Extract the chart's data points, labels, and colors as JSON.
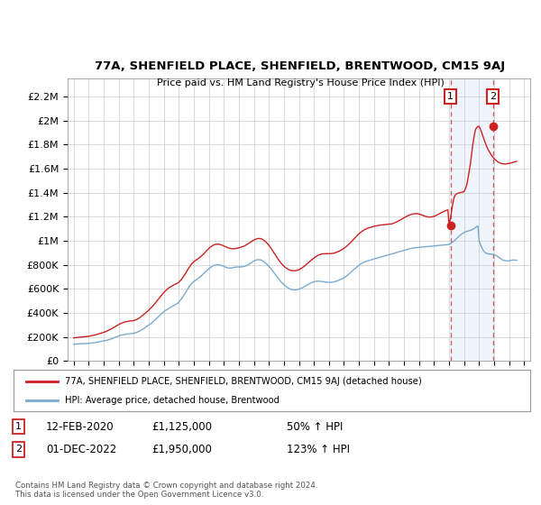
{
  "title": "77A, SHENFIELD PLACE, SHENFIELD, BRENTWOOD, CM15 9AJ",
  "subtitle": "Price paid vs. HM Land Registry's House Price Index (HPI)",
  "ylabel_ticks": [
    "£0",
    "£200K",
    "£400K",
    "£600K",
    "£800K",
    "£1M",
    "£1.2M",
    "£1.4M",
    "£1.6M",
    "£1.8M",
    "£2M",
    "£2.2M"
  ],
  "ytick_values": [
    0,
    200000,
    400000,
    600000,
    800000,
    1000000,
    1200000,
    1400000,
    1600000,
    1800000,
    2000000,
    2200000
  ],
  "ylim": [
    0,
    2350000
  ],
  "xlim_start": 1994.6,
  "xlim_end": 2025.4,
  "hpi_color": "#7aaad0",
  "property_color": "#cc2222",
  "bg_color": "#ffffff",
  "grid_color": "#cccccc",
  "annotation_box_color": "#cc2222",
  "shade_color": "#ddeeff",
  "sale1_year": 2020.1,
  "sale1_value": 1125000,
  "sale2_year": 2022.92,
  "sale2_value": 1950000,
  "sale1_date": "12-FEB-2020",
  "sale1_price": "£1,125,000",
  "sale1_hpi": "50% ↑ HPI",
  "sale2_date": "01-DEC-2022",
  "sale2_price": "£1,950,000",
  "sale2_hpi": "123% ↑ HPI",
  "legend_property": "77A, SHENFIELD PLACE, SHENFIELD, BRENTWOOD, CM15 9AJ (detached house)",
  "legend_hpi": "HPI: Average price, detached house, Brentwood",
  "footer": "Contains HM Land Registry data © Crown copyright and database right 2024.\nThis data is licensed under the Open Government Licence v3.0.",
  "hpi_years": [
    1995.0,
    1995.08,
    1995.17,
    1995.25,
    1995.33,
    1995.42,
    1995.5,
    1995.58,
    1995.67,
    1995.75,
    1995.83,
    1995.92,
    1996.0,
    1996.08,
    1996.17,
    1996.25,
    1996.33,
    1996.42,
    1996.5,
    1996.58,
    1996.67,
    1996.75,
    1996.83,
    1996.92,
    1997.0,
    1997.08,
    1997.17,
    1997.25,
    1997.33,
    1997.42,
    1997.5,
    1997.58,
    1997.67,
    1997.75,
    1997.83,
    1997.92,
    1998.0,
    1998.08,
    1998.17,
    1998.25,
    1998.33,
    1998.42,
    1998.5,
    1998.58,
    1998.67,
    1998.75,
    1998.83,
    1998.92,
    1999.0,
    1999.08,
    1999.17,
    1999.25,
    1999.33,
    1999.42,
    1999.5,
    1999.58,
    1999.67,
    1999.75,
    1999.83,
    1999.92,
    2000.0,
    2000.08,
    2000.17,
    2000.25,
    2000.33,
    2000.42,
    2000.5,
    2000.58,
    2000.67,
    2000.75,
    2000.83,
    2000.92,
    2001.0,
    2001.08,
    2001.17,
    2001.25,
    2001.33,
    2001.42,
    2001.5,
    2001.58,
    2001.67,
    2001.75,
    2001.83,
    2001.92,
    2002.0,
    2002.08,
    2002.17,
    2002.25,
    2002.33,
    2002.42,
    2002.5,
    2002.58,
    2002.67,
    2002.75,
    2002.83,
    2002.92,
    2003.0,
    2003.08,
    2003.17,
    2003.25,
    2003.33,
    2003.42,
    2003.5,
    2003.58,
    2003.67,
    2003.75,
    2003.83,
    2003.92,
    2004.0,
    2004.08,
    2004.17,
    2004.25,
    2004.33,
    2004.42,
    2004.5,
    2004.58,
    2004.67,
    2004.75,
    2004.83,
    2004.92,
    2005.0,
    2005.08,
    2005.17,
    2005.25,
    2005.33,
    2005.42,
    2005.5,
    2005.58,
    2005.67,
    2005.75,
    2005.83,
    2005.92,
    2006.0,
    2006.08,
    2006.17,
    2006.25,
    2006.33,
    2006.42,
    2006.5,
    2006.58,
    2006.67,
    2006.75,
    2006.83,
    2006.92,
    2007.0,
    2007.08,
    2007.17,
    2007.25,
    2007.33,
    2007.42,
    2007.5,
    2007.58,
    2007.67,
    2007.75,
    2007.83,
    2007.92,
    2008.0,
    2008.08,
    2008.17,
    2008.25,
    2008.33,
    2008.42,
    2008.5,
    2008.58,
    2008.67,
    2008.75,
    2008.83,
    2008.92,
    2009.0,
    2009.08,
    2009.17,
    2009.25,
    2009.33,
    2009.42,
    2009.5,
    2009.58,
    2009.67,
    2009.75,
    2009.83,
    2009.92,
    2010.0,
    2010.08,
    2010.17,
    2010.25,
    2010.33,
    2010.42,
    2010.5,
    2010.58,
    2010.67,
    2010.75,
    2010.83,
    2010.92,
    2011.0,
    2011.08,
    2011.17,
    2011.25,
    2011.33,
    2011.42,
    2011.5,
    2011.58,
    2011.67,
    2011.75,
    2011.83,
    2011.92,
    2012.0,
    2012.08,
    2012.17,
    2012.25,
    2012.33,
    2012.42,
    2012.5,
    2012.58,
    2012.67,
    2012.75,
    2012.83,
    2012.92,
    2013.0,
    2013.08,
    2013.17,
    2013.25,
    2013.33,
    2013.42,
    2013.5,
    2013.58,
    2013.67,
    2013.75,
    2013.83,
    2013.92,
    2014.0,
    2014.08,
    2014.17,
    2014.25,
    2014.33,
    2014.42,
    2014.5,
    2014.58,
    2014.67,
    2014.75,
    2014.83,
    2014.92,
    2015.0,
    2015.08,
    2015.17,
    2015.25,
    2015.33,
    2015.42,
    2015.5,
    2015.58,
    2015.67,
    2015.75,
    2015.83,
    2015.92,
    2016.0,
    2016.08,
    2016.17,
    2016.25,
    2016.33,
    2016.42,
    2016.5,
    2016.58,
    2016.67,
    2016.75,
    2016.83,
    2016.92,
    2017.0,
    2017.08,
    2017.17,
    2017.25,
    2017.33,
    2017.42,
    2017.5,
    2017.58,
    2017.67,
    2017.75,
    2017.83,
    2017.92,
    2018.0,
    2018.08,
    2018.17,
    2018.25,
    2018.33,
    2018.42,
    2018.5,
    2018.58,
    2018.67,
    2018.75,
    2018.83,
    2018.92,
    2019.0,
    2019.08,
    2019.17,
    2019.25,
    2019.33,
    2019.42,
    2019.5,
    2019.58,
    2019.67,
    2019.75,
    2019.83,
    2019.92,
    2020.0,
    2020.08,
    2020.17,
    2020.25,
    2020.33,
    2020.42,
    2020.5,
    2020.58,
    2020.67,
    2020.75,
    2020.83,
    2020.92,
    2021.0,
    2021.08,
    2021.17,
    2021.25,
    2021.33,
    2021.42,
    2021.5,
    2021.58,
    2021.67,
    2021.75,
    2021.83,
    2021.92,
    2022.0,
    2022.08,
    2022.17,
    2022.25,
    2022.33,
    2022.42,
    2022.5,
    2022.58,
    2022.67,
    2022.75,
    2022.83,
    2022.92,
    2023.0,
    2023.08,
    2023.17,
    2023.25,
    2023.33,
    2023.42,
    2023.5,
    2023.58,
    2023.67,
    2023.75,
    2023.83,
    2023.92,
    2024.0,
    2024.08,
    2024.17,
    2024.25,
    2024.33,
    2024.42,
    2024.5
  ],
  "hpi_values": [
    140000,
    141000,
    141500,
    142000,
    142500,
    143000,
    143500,
    144000,
    144500,
    145000,
    145500,
    146000,
    147000,
    148000,
    149000,
    150000,
    151500,
    153000,
    155000,
    157000,
    159000,
    161000,
    163000,
    165000,
    167000,
    169000,
    171000,
    174000,
    177000,
    180000,
    184000,
    188000,
    192000,
    196000,
    200000,
    204000,
    208000,
    212000,
    216000,
    218000,
    220000,
    222000,
    224000,
    225000,
    226000,
    227000,
    228000,
    229000,
    231000,
    234000,
    237000,
    241000,
    246000,
    251000,
    257000,
    263000,
    270000,
    277000,
    284000,
    291000,
    298000,
    306000,
    314000,
    323000,
    332000,
    341000,
    351000,
    361000,
    371000,
    381000,
    391000,
    401000,
    411000,
    418000,
    425000,
    432000,
    438000,
    444000,
    450000,
    456000,
    462000,
    468000,
    474000,
    480000,
    490000,
    502000,
    516000,
    530000,
    546000,
    562000,
    579000,
    596000,
    613000,
    628000,
    641000,
    652000,
    661000,
    668000,
    675000,
    682000,
    690000,
    699000,
    708000,
    718000,
    728000,
    738000,
    748000,
    758000,
    768000,
    776000,
    783000,
    789000,
    794000,
    797000,
    800000,
    801000,
    800000,
    798000,
    795000,
    791000,
    787000,
    782000,
    778000,
    775000,
    773000,
    773000,
    774000,
    776000,
    778000,
    780000,
    781000,
    782000,
    782000,
    782000,
    783000,
    784000,
    786000,
    789000,
    793000,
    798000,
    804000,
    811000,
    818000,
    825000,
    831000,
    836000,
    840000,
    842000,
    842000,
    841000,
    838000,
    833000,
    826000,
    818000,
    809000,
    799000,
    788000,
    776000,
    763000,
    750000,
    736000,
    722000,
    708000,
    694000,
    681000,
    668000,
    656000,
    645000,
    635000,
    626000,
    617000,
    610000,
    604000,
    599000,
    595000,
    593000,
    591000,
    591000,
    592000,
    594000,
    597000,
    601000,
    606000,
    611000,
    617000,
    623000,
    629000,
    635000,
    641000,
    646000,
    651000,
    655000,
    659000,
    661000,
    663000,
    664000,
    664000,
    663000,
    662000,
    660000,
    659000,
    657000,
    656000,
    655000,
    654000,
    654000,
    655000,
    656000,
    658000,
    661000,
    664000,
    668000,
    672000,
    676000,
    681000,
    686000,
    692000,
    699000,
    707000,
    715000,
    724000,
    733000,
    743000,
    752000,
    762000,
    771000,
    780000,
    789000,
    797000,
    804000,
    811000,
    817000,
    822000,
    826000,
    830000,
    833000,
    836000,
    839000,
    842000,
    845000,
    848000,
    851000,
    854000,
    857000,
    860000,
    863000,
    866000,
    869000,
    872000,
    875000,
    878000,
    881000,
    884000,
    887000,
    890000,
    893000,
    896000,
    899000,
    902000,
    905000,
    908000,
    911000,
    914000,
    917000,
    920000,
    923000,
    926000,
    929000,
    932000,
    935000,
    937000,
    939000,
    941000,
    942000,
    943000,
    944000,
    945000,
    946000,
    947000,
    948000,
    949000,
    950000,
    951000,
    952000,
    953000,
    954000,
    955000,
    956000,
    957000,
    958000,
    959000,
    960000,
    961000,
    962000,
    963000,
    964000,
    965000,
    966000,
    967000,
    968000,
    969000,
    975000,
    982000,
    990000,
    999000,
    1008000,
    1018000,
    1028000,
    1038000,
    1047000,
    1055000,
    1062000,
    1068000,
    1073000,
    1077000,
    1080000,
    1083000,
    1086000,
    1090000,
    1095000,
    1101000,
    1108000,
    1116000,
    1125000,
    1000000,
    970000,
    945000,
    925000,
    910000,
    900000,
    895000,
    892000,
    890000,
    888000,
    887000,
    886000,
    885000,
    880000,
    875000,
    868000,
    860000,
    852000,
    845000,
    840000,
    836000,
    834000,
    833000,
    833000,
    834000,
    836000,
    838000,
    840000,
    840000,
    839000,
    837000
  ],
  "prop_years": [
    1995.0,
    1995.08,
    1995.17,
    1995.25,
    1995.33,
    1995.42,
    1995.5,
    1995.58,
    1995.67,
    1995.75,
    1995.83,
    1995.92,
    1996.0,
    1996.08,
    1996.17,
    1996.25,
    1996.33,
    1996.42,
    1996.5,
    1996.58,
    1996.67,
    1996.75,
    1996.83,
    1996.92,
    1997.0,
    1997.08,
    1997.17,
    1997.25,
    1997.33,
    1997.42,
    1997.5,
    1997.58,
    1997.67,
    1997.75,
    1997.83,
    1997.92,
    1998.0,
    1998.08,
    1998.17,
    1998.25,
    1998.33,
    1998.42,
    1998.5,
    1998.58,
    1998.67,
    1998.75,
    1998.83,
    1998.92,
    1999.0,
    1999.08,
    1999.17,
    1999.25,
    1999.33,
    1999.42,
    1999.5,
    1999.58,
    1999.67,
    1999.75,
    1999.83,
    1999.92,
    2000.0,
    2000.08,
    2000.17,
    2000.25,
    2000.33,
    2000.42,
    2000.5,
    2000.58,
    2000.67,
    2000.75,
    2000.83,
    2000.92,
    2001.0,
    2001.08,
    2001.17,
    2001.25,
    2001.33,
    2001.42,
    2001.5,
    2001.58,
    2001.67,
    2001.75,
    2001.83,
    2001.92,
    2002.0,
    2002.08,
    2002.17,
    2002.25,
    2002.33,
    2002.42,
    2002.5,
    2002.58,
    2002.67,
    2002.75,
    2002.83,
    2002.92,
    2003.0,
    2003.08,
    2003.17,
    2003.25,
    2003.33,
    2003.42,
    2003.5,
    2003.58,
    2003.67,
    2003.75,
    2003.83,
    2003.92,
    2004.0,
    2004.08,
    2004.17,
    2004.25,
    2004.33,
    2004.42,
    2004.5,
    2004.58,
    2004.67,
    2004.75,
    2004.83,
    2004.92,
    2005.0,
    2005.08,
    2005.17,
    2005.25,
    2005.33,
    2005.42,
    2005.5,
    2005.58,
    2005.67,
    2005.75,
    2005.83,
    2005.92,
    2006.0,
    2006.08,
    2006.17,
    2006.25,
    2006.33,
    2006.42,
    2006.5,
    2006.58,
    2006.67,
    2006.75,
    2006.83,
    2006.92,
    2007.0,
    2007.08,
    2007.17,
    2007.25,
    2007.33,
    2007.42,
    2007.5,
    2007.58,
    2007.67,
    2007.75,
    2007.83,
    2007.92,
    2008.0,
    2008.08,
    2008.17,
    2008.25,
    2008.33,
    2008.42,
    2008.5,
    2008.58,
    2008.67,
    2008.75,
    2008.83,
    2008.92,
    2009.0,
    2009.08,
    2009.17,
    2009.25,
    2009.33,
    2009.42,
    2009.5,
    2009.58,
    2009.67,
    2009.75,
    2009.83,
    2009.92,
    2010.0,
    2010.08,
    2010.17,
    2010.25,
    2010.33,
    2010.42,
    2010.5,
    2010.58,
    2010.67,
    2010.75,
    2010.83,
    2010.92,
    2011.0,
    2011.08,
    2011.17,
    2011.25,
    2011.33,
    2011.42,
    2011.5,
    2011.58,
    2011.67,
    2011.75,
    2011.83,
    2011.92,
    2012.0,
    2012.08,
    2012.17,
    2012.25,
    2012.33,
    2012.42,
    2012.5,
    2012.58,
    2012.67,
    2012.75,
    2012.83,
    2012.92,
    2013.0,
    2013.08,
    2013.17,
    2013.25,
    2013.33,
    2013.42,
    2013.5,
    2013.58,
    2013.67,
    2013.75,
    2013.83,
    2013.92,
    2014.0,
    2014.08,
    2014.17,
    2014.25,
    2014.33,
    2014.42,
    2014.5,
    2014.58,
    2014.67,
    2014.75,
    2014.83,
    2014.92,
    2015.0,
    2015.08,
    2015.17,
    2015.25,
    2015.33,
    2015.42,
    2015.5,
    2015.58,
    2015.67,
    2015.75,
    2015.83,
    2015.92,
    2016.0,
    2016.08,
    2016.17,
    2016.25,
    2016.33,
    2016.42,
    2016.5,
    2016.58,
    2016.67,
    2016.75,
    2016.83,
    2016.92,
    2017.0,
    2017.08,
    2017.17,
    2017.25,
    2017.33,
    2017.42,
    2017.5,
    2017.58,
    2017.67,
    2017.75,
    2017.83,
    2017.92,
    2018.0,
    2018.08,
    2018.17,
    2018.25,
    2018.33,
    2018.42,
    2018.5,
    2018.58,
    2018.67,
    2018.75,
    2018.83,
    2018.92,
    2019.0,
    2019.08,
    2019.17,
    2019.25,
    2019.33,
    2019.42,
    2019.5,
    2019.58,
    2019.67,
    2019.75,
    2019.83,
    2019.92,
    2020.0,
    2020.08,
    2020.17,
    2020.25,
    2020.33,
    2020.42,
    2020.5,
    2020.58,
    2020.67,
    2020.75,
    2020.83,
    2020.92,
    2021.0,
    2021.08,
    2021.17,
    2021.25,
    2021.33,
    2021.42,
    2021.5,
    2021.58,
    2021.67,
    2021.75,
    2021.83,
    2021.92,
    2022.0,
    2022.08,
    2022.17,
    2022.25,
    2022.33,
    2022.42,
    2022.5,
    2022.58,
    2022.67,
    2022.75,
    2022.83,
    2022.92,
    2023.0,
    2023.08,
    2023.17,
    2023.25,
    2023.33,
    2023.42,
    2023.5,
    2023.58,
    2023.67,
    2023.75,
    2023.83,
    2023.92,
    2024.0,
    2024.08,
    2024.17,
    2024.25,
    2024.33,
    2024.42,
    2024.5
  ],
  "prop_values": [
    193000,
    194000,
    195000,
    196000,
    197000,
    198000,
    199000,
    200000,
    201000,
    202000,
    203000,
    204000,
    206000,
    208000,
    210000,
    212000,
    214000,
    217000,
    220000,
    223000,
    226000,
    229000,
    232000,
    235000,
    238000,
    242000,
    246000,
    251000,
    256000,
    261000,
    267000,
    273000,
    279000,
    285000,
    291000,
    297000,
    303000,
    309000,
    314000,
    318000,
    322000,
    325000,
    328000,
    330000,
    332000,
    333000,
    334000,
    335000,
    337000,
    340000,
    344000,
    349000,
    355000,
    362000,
    370000,
    378000,
    387000,
    396000,
    405000,
    414000,
    423000,
    433000,
    444000,
    455000,
    467000,
    479000,
    492000,
    505000,
    518000,
    531000,
    544000,
    557000,
    570000,
    580000,
    590000,
    599000,
    607000,
    614000,
    621000,
    627000,
    633000,
    638000,
    643000,
    648000,
    655000,
    665000,
    677000,
    691000,
    706000,
    722000,
    739000,
    756000,
    773000,
    789000,
    803000,
    815000,
    825000,
    833000,
    840000,
    847000,
    855000,
    863000,
    872000,
    882000,
    892000,
    903000,
    914000,
    925000,
    936000,
    945000,
    953000,
    960000,
    965000,
    969000,
    971000,
    972000,
    971000,
    969000,
    966000,
    962000,
    957000,
    952000,
    947000,
    943000,
    939000,
    936000,
    934000,
    933000,
    933000,
    934000,
    936000,
    938000,
    941000,
    944000,
    947000,
    951000,
    955000,
    960000,
    966000,
    972000,
    979000,
    986000,
    993000,
    1000000,
    1006000,
    1011000,
    1015000,
    1018000,
    1019000,
    1018000,
    1016000,
    1011000,
    1004000,
    996000,
    986000,
    975000,
    962000,
    948000,
    933000,
    917000,
    901000,
    885000,
    869000,
    853000,
    838000,
    824000,
    811000,
    800000,
    789000,
    780000,
    772000,
    765000,
    759000,
    755000,
    752000,
    751000,
    750000,
    751000,
    753000,
    756000,
    760000,
    765000,
    771000,
    778000,
    786000,
    794000,
    803000,
    812000,
    821000,
    830000,
    839000,
    848000,
    857000,
    864000,
    871000,
    877000,
    882000,
    886000,
    889000,
    891000,
    892000,
    893000,
    893000,
    893000,
    893000,
    893000,
    894000,
    895000,
    897000,
    900000,
    904000,
    908000,
    913000,
    918000,
    924000,
    930000,
    937000,
    945000,
    953000,
    962000,
    972000,
    982000,
    993000,
    1004000,
    1015000,
    1026000,
    1037000,
    1048000,
    1058000,
    1067000,
    1075000,
    1082000,
    1089000,
    1095000,
    1100000,
    1104000,
    1108000,
    1111000,
    1114000,
    1117000,
    1120000,
    1122000,
    1124000,
    1126000,
    1128000,
    1130000,
    1131000,
    1132000,
    1133000,
    1134000,
    1135000,
    1136000,
    1137000,
    1138000,
    1140000,
    1143000,
    1147000,
    1151000,
    1156000,
    1161000,
    1167000,
    1173000,
    1179000,
    1185000,
    1191000,
    1197000,
    1202000,
    1207000,
    1212000,
    1216000,
    1219000,
    1222000,
    1224000,
    1225000,
    1225000,
    1224000,
    1222000,
    1219000,
    1215000,
    1211000,
    1207000,
    1203000,
    1200000,
    1198000,
    1197000,
    1197000,
    1198000,
    1200000,
    1203000,
    1207000,
    1212000,
    1217000,
    1223000,
    1228000,
    1234000,
    1239000,
    1244000,
    1249000,
    1253000,
    1257000,
    1125000,
    1180000,
    1250000,
    1310000,
    1360000,
    1380000,
    1390000,
    1395000,
    1398000,
    1400000,
    1402000,
    1405000,
    1408000,
    1430000,
    1460000,
    1510000,
    1570000,
    1640000,
    1720000,
    1800000,
    1870000,
    1920000,
    1940000,
    1950000,
    1950000,
    1930000,
    1900000,
    1870000,
    1840000,
    1810000,
    1785000,
    1762000,
    1742000,
    1724000,
    1708000,
    1694000,
    1682000,
    1672000,
    1663000,
    1655000,
    1649000,
    1644000,
    1641000,
    1639000,
    1638000,
    1638000,
    1639000,
    1641000,
    1643000,
    1645000,
    1648000,
    1651000,
    1654000,
    1657000,
    1660000
  ]
}
